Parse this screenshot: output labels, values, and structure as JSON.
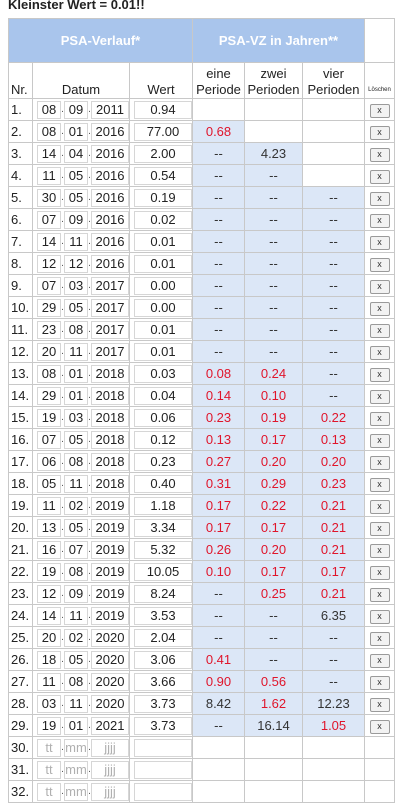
{
  "top_note": "Kleinster Wert = 0.01!!",
  "headers": {
    "verlauf": "PSA-Verlauf*",
    "vz": "PSA-VZ in Jahren**",
    "nr": "Nr.",
    "datum": "Datum",
    "wert": "Wert",
    "p1_a": "eine",
    "p1_b": "Periode",
    "p2_a": "zwei",
    "p2_b": "Perioden",
    "p4_a": "vier",
    "p4_b": "Perioden",
    "loeschen": "Löschen"
  },
  "placeholders": {
    "day": "tt",
    "month": "mm",
    "year": "jjjj"
  },
  "delete_label": "x",
  "rows": [
    {
      "nr": "1.",
      "d": "08",
      "m": "09",
      "y": "2011",
      "w": "0.94",
      "p1": "",
      "p1c": "w",
      "p2": "",
      "p2c": "w",
      "p4": "",
      "p4c": "w"
    },
    {
      "nr": "2.",
      "d": "08",
      "m": "01",
      "y": "2016",
      "w": "77.00",
      "p1": "0.68",
      "p1c": "r",
      "p2": "",
      "p2c": "w",
      "p4": "",
      "p4c": "w"
    },
    {
      "nr": "3.",
      "d": "14",
      "m": "04",
      "y": "2016",
      "w": "2.00",
      "p1": "--",
      "p1c": "b",
      "p2": "4.23",
      "p2c": "b",
      "p4": "",
      "p4c": "w"
    },
    {
      "nr": "4.",
      "d": "11",
      "m": "05",
      "y": "2016",
      "w": "0.54",
      "p1": "--",
      "p1c": "b",
      "p2": "--",
      "p2c": "b",
      "p4": "",
      "p4c": "w"
    },
    {
      "nr": "5.",
      "d": "30",
      "m": "05",
      "y": "2016",
      "w": "0.19",
      "p1": "--",
      "p1c": "b",
      "p2": "--",
      "p2c": "b",
      "p4": "--",
      "p4c": "b"
    },
    {
      "nr": "6.",
      "d": "07",
      "m": "09",
      "y": "2016",
      "w": "0.02",
      "p1": "--",
      "p1c": "b",
      "p2": "--",
      "p2c": "b",
      "p4": "--",
      "p4c": "b"
    },
    {
      "nr": "7.",
      "d": "14",
      "m": "11",
      "y": "2016",
      "w": "0.01",
      "p1": "--",
      "p1c": "b",
      "p2": "--",
      "p2c": "b",
      "p4": "--",
      "p4c": "b"
    },
    {
      "nr": "8.",
      "d": "12",
      "m": "12",
      "y": "2016",
      "w": "0.01",
      "p1": "--",
      "p1c": "b",
      "p2": "--",
      "p2c": "b",
      "p4": "--",
      "p4c": "b"
    },
    {
      "nr": "9.",
      "d": "07",
      "m": "03",
      "y": "2017",
      "w": "0.00",
      "p1": "--",
      "p1c": "b",
      "p2": "--",
      "p2c": "b",
      "p4": "--",
      "p4c": "b"
    },
    {
      "nr": "10.",
      "d": "29",
      "m": "05",
      "y": "2017",
      "w": "0.00",
      "p1": "--",
      "p1c": "b",
      "p2": "--",
      "p2c": "b",
      "p4": "--",
      "p4c": "b"
    },
    {
      "nr": "11.",
      "d": "23",
      "m": "08",
      "y": "2017",
      "w": "0.01",
      "p1": "--",
      "p1c": "b",
      "p2": "--",
      "p2c": "b",
      "p4": "--",
      "p4c": "b"
    },
    {
      "nr": "12.",
      "d": "20",
      "m": "11",
      "y": "2017",
      "w": "0.01",
      "p1": "--",
      "p1c": "b",
      "p2": "--",
      "p2c": "b",
      "p4": "--",
      "p4c": "b"
    },
    {
      "nr": "13.",
      "d": "08",
      "m": "01",
      "y": "2018",
      "w": "0.03",
      "p1": "0.08",
      "p1c": "r",
      "p2": "0.24",
      "p2c": "r",
      "p4": "--",
      "p4c": "b"
    },
    {
      "nr": "14.",
      "d": "29",
      "m": "01",
      "y": "2018",
      "w": "0.04",
      "p1": "0.14",
      "p1c": "r",
      "p2": "0.10",
      "p2c": "r",
      "p4": "--",
      "p4c": "b"
    },
    {
      "nr": "15.",
      "d": "19",
      "m": "03",
      "y": "2018",
      "w": "0.06",
      "p1": "0.23",
      "p1c": "r",
      "p2": "0.19",
      "p2c": "r",
      "p4": "0.22",
      "p4c": "r"
    },
    {
      "nr": "16.",
      "d": "07",
      "m": "05",
      "y": "2018",
      "w": "0.12",
      "p1": "0.13",
      "p1c": "r",
      "p2": "0.17",
      "p2c": "r",
      "p4": "0.13",
      "p4c": "r"
    },
    {
      "nr": "17.",
      "d": "06",
      "m": "08",
      "y": "2018",
      "w": "0.23",
      "p1": "0.27",
      "p1c": "r",
      "p2": "0.20",
      "p2c": "r",
      "p4": "0.20",
      "p4c": "r"
    },
    {
      "nr": "18.",
      "d": "05",
      "m": "11",
      "y": "2018",
      "w": "0.40",
      "p1": "0.31",
      "p1c": "r",
      "p2": "0.29",
      "p2c": "r",
      "p4": "0.23",
      "p4c": "r"
    },
    {
      "nr": "19.",
      "d": "11",
      "m": "02",
      "y": "2019",
      "w": "1.18",
      "p1": "0.17",
      "p1c": "r",
      "p2": "0.22",
      "p2c": "r",
      "p4": "0.21",
      "p4c": "r"
    },
    {
      "nr": "20.",
      "d": "13",
      "m": "05",
      "y": "2019",
      "w": "3.34",
      "p1": "0.17",
      "p1c": "r",
      "p2": "0.17",
      "p2c": "r",
      "p4": "0.21",
      "p4c": "r"
    },
    {
      "nr": "21.",
      "d": "16",
      "m": "07",
      "y": "2019",
      "w": "5.32",
      "p1": "0.26",
      "p1c": "r",
      "p2": "0.20",
      "p2c": "r",
      "p4": "0.21",
      "p4c": "r"
    },
    {
      "nr": "22.",
      "d": "19",
      "m": "08",
      "y": "2019",
      "w": "10.05",
      "p1": "0.10",
      "p1c": "r",
      "p2": "0.17",
      "p2c": "r",
      "p4": "0.17",
      "p4c": "r"
    },
    {
      "nr": "23.",
      "d": "12",
      "m": "09",
      "y": "2019",
      "w": "8.24",
      "p1": "--",
      "p1c": "b",
      "p2": "0.25",
      "p2c": "r",
      "p4": "0.21",
      "p4c": "r"
    },
    {
      "nr": "24.",
      "d": "14",
      "m": "11",
      "y": "2019",
      "w": "3.53",
      "p1": "--",
      "p1c": "b",
      "p2": "--",
      "p2c": "b",
      "p4": "6.35",
      "p4c": "b"
    },
    {
      "nr": "25.",
      "d": "20",
      "m": "02",
      "y": "2020",
      "w": "2.04",
      "p1": "--",
      "p1c": "b",
      "p2": "--",
      "p2c": "b",
      "p4": "--",
      "p4c": "b"
    },
    {
      "nr": "26.",
      "d": "18",
      "m": "05",
      "y": "2020",
      "w": "3.06",
      "p1": "0.41",
      "p1c": "r",
      "p2": "--",
      "p2c": "b",
      "p4": "--",
      "p4c": "b"
    },
    {
      "nr": "27.",
      "d": "11",
      "m": "08",
      "y": "2020",
      "w": "3.66",
      "p1": "0.90",
      "p1c": "r",
      "p2": "0.56",
      "p2c": "r",
      "p4": "--",
      "p4c": "b"
    },
    {
      "nr": "28.",
      "d": "03",
      "m": "11",
      "y": "2020",
      "w": "3.73",
      "p1": "8.42",
      "p1c": "b",
      "p2": "1.62",
      "p2c": "r",
      "p4": "12.23",
      "p4c": "b"
    },
    {
      "nr": "29.",
      "d": "19",
      "m": "01",
      "y": "2021",
      "w": "3.73",
      "p1": "--",
      "p1c": "b",
      "p2": "16.14",
      "p2c": "b",
      "p4": "1.05",
      "p4c": "r"
    }
  ],
  "empty_rows": [
    "30.",
    "31.",
    "32."
  ]
}
